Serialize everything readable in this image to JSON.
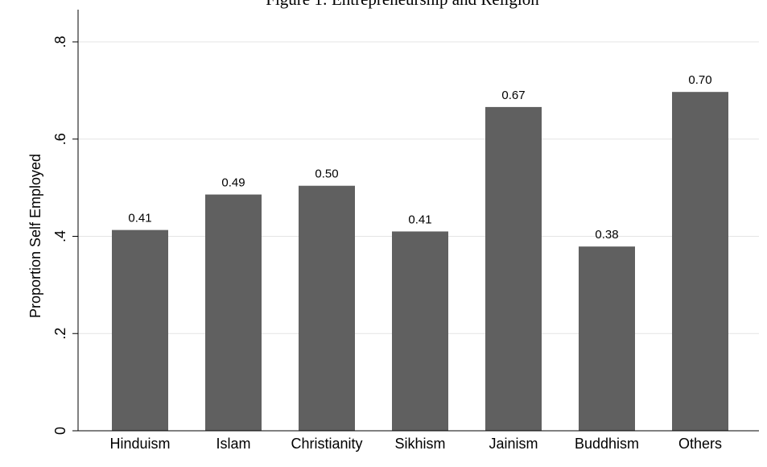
{
  "chart_data": {
    "type": "bar",
    "title": "Figure 1: Entrepreneurship and Religion",
    "xlabel": "",
    "ylabel": "Proportion Self Employed",
    "categories": [
      "Hinduism",
      "Islam",
      "Christianity",
      "Sikhism",
      "Jainism",
      "Buddhism",
      "Others"
    ],
    "values": [
      0.413,
      0.486,
      0.504,
      0.41,
      0.666,
      0.379,
      0.697
    ],
    "data_labels": [
      "0.41",
      "0.49",
      "0.50",
      "0.41",
      "0.67",
      "0.38",
      "0.70"
    ],
    "ylim": [
      0,
      0.8
    ],
    "yticks": [
      0,
      0.2,
      0.4,
      0.6,
      0.8
    ],
    "ytick_labels": [
      "0",
      ".2",
      ".4",
      ".6",
      ".8"
    ],
    "grid": true,
    "legend": "none",
    "colors": {
      "bar": "#606060",
      "gridline": "#e4e4e4",
      "axis": "#000000"
    }
  }
}
